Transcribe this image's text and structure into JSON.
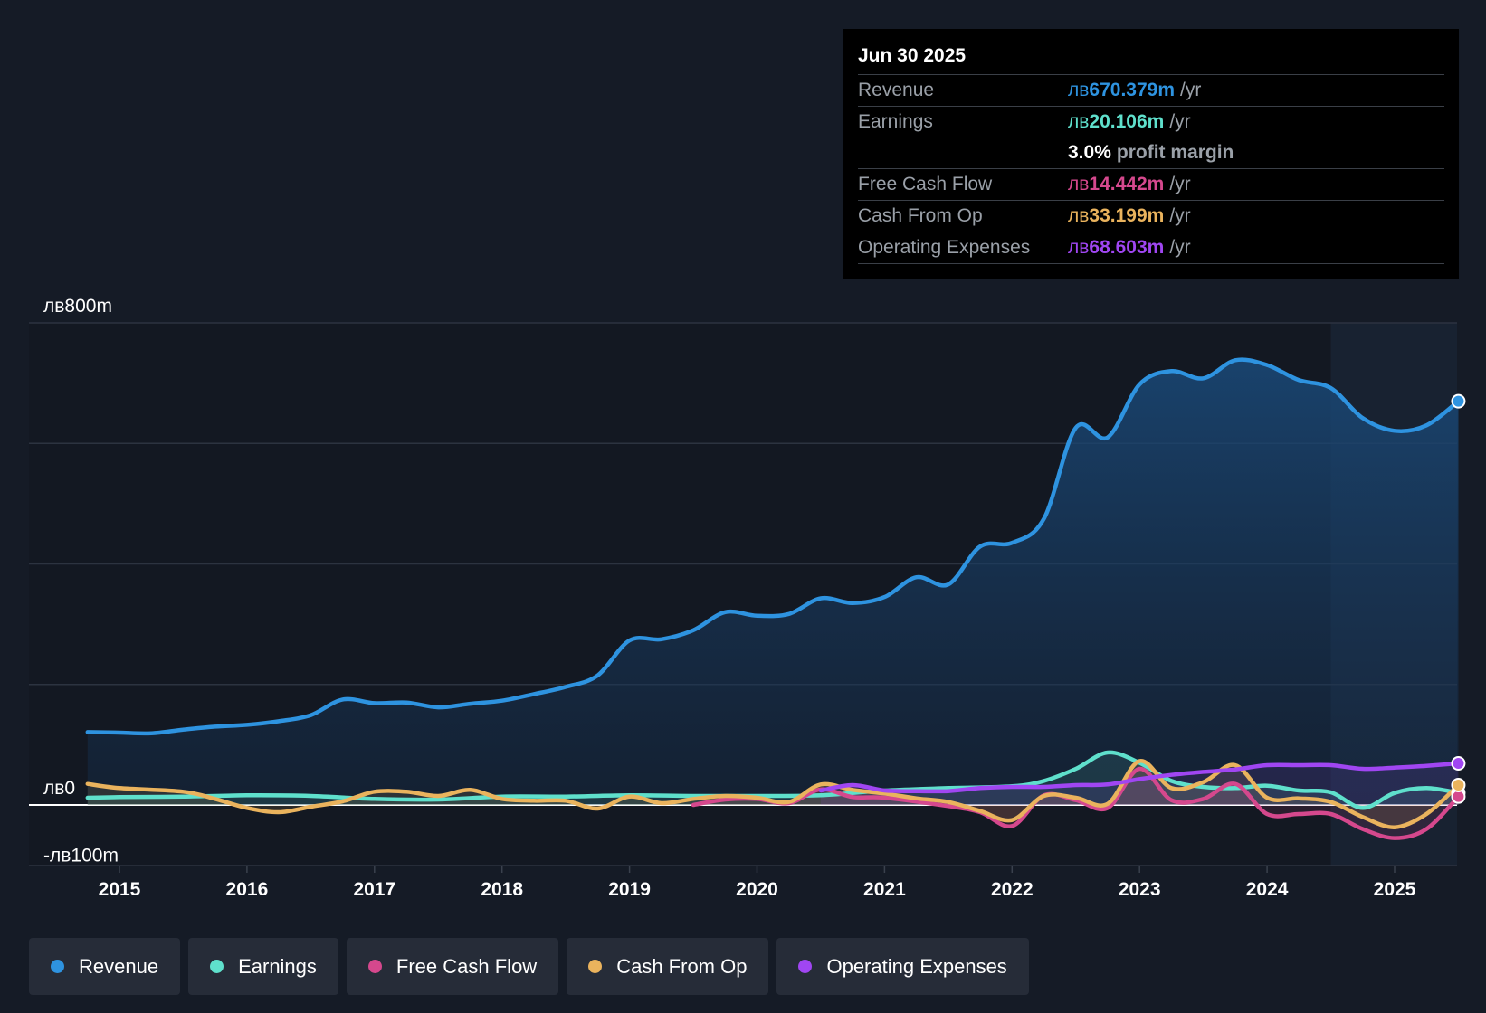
{
  "tooltip": {
    "date": "Jun 30 2025",
    "rows": [
      {
        "label": "Revenue",
        "currency": "лв",
        "value": "670.379m",
        "unit": "/yr",
        "color": "#2e93e0"
      },
      {
        "label": "Earnings",
        "currency": "лв",
        "value": "20.106m",
        "unit": "/yr",
        "color": "#5fe0cc"
      },
      {
        "label": "",
        "value": "3.0%",
        "unit": "profit margin",
        "color": "#ffffff"
      },
      {
        "label": "Free Cash Flow",
        "currency": "лв",
        "value": "14.442m",
        "unit": "/yr",
        "color": "#d5488d"
      },
      {
        "label": "Cash From Op",
        "currency": "лв",
        "value": "33.199m",
        "unit": "/yr",
        "color": "#eab35d"
      },
      {
        "label": "Operating Expenses",
        "currency": "лв",
        "value": "68.603m",
        "unit": "/yr",
        "color": "#a046f2"
      }
    ]
  },
  "legend": [
    {
      "name": "Revenue",
      "color": "#2e93e0"
    },
    {
      "name": "Earnings",
      "color": "#5fe0cc"
    },
    {
      "name": "Free Cash Flow",
      "color": "#d5488d"
    },
    {
      "name": "Cash From Op",
      "color": "#eab35d"
    },
    {
      "name": "Operating Expenses",
      "color": "#a046f2"
    }
  ],
  "chart_data": {
    "type": "line",
    "ylim": [
      -100,
      800
    ],
    "y_tick_labels": [
      {
        "value": 800,
        "label": "лв800m"
      },
      {
        "value": 0,
        "label": "лв0"
      },
      {
        "value": -100,
        "label": "-лв100m"
      }
    ],
    "gridlines": [
      800,
      600,
      400,
      200,
      0
    ],
    "xlim": [
      2014.3,
      2025.5
    ],
    "x_ticks": [
      2015,
      2016,
      2017,
      2018,
      2019,
      2020,
      2021,
      2022,
      2023,
      2024,
      2025
    ],
    "x_tick_labels": [
      "2015",
      "2016",
      "2017",
      "2018",
      "2019",
      "2020",
      "2021",
      "2022",
      "2023",
      "2024",
      "2025"
    ],
    "highlight_start": 2024.5,
    "series": [
      {
        "name": "Revenue",
        "color": "#2e93e0",
        "fill": true,
        "x": [
          2014.75,
          2015.0,
          2015.25,
          2015.5,
          2015.75,
          2016.0,
          2016.25,
          2016.5,
          2016.75,
          2017.0,
          2017.25,
          2017.5,
          2017.75,
          2018.0,
          2018.25,
          2018.5,
          2018.75,
          2019.0,
          2019.25,
          2019.5,
          2019.75,
          2020.0,
          2020.25,
          2020.5,
          2020.75,
          2021.0,
          2021.25,
          2021.5,
          2021.75,
          2022.0,
          2022.25,
          2022.5,
          2022.75,
          2023.0,
          2023.25,
          2023.5,
          2023.75,
          2024.0,
          2024.25,
          2024.5,
          2024.75,
          2025.0,
          2025.25,
          2025.5
        ],
        "y": [
          121,
          120,
          119,
          125,
          130,
          133,
          139,
          149,
          175,
          169,
          170,
          162,
          168,
          173,
          184,
          196,
          215,
          273,
          275,
          290,
          320,
          314,
          317,
          343,
          335,
          345,
          378,
          366,
          429,
          435,
          475,
          626,
          610,
          698,
          720,
          708,
          738,
          730,
          705,
          692,
          642,
          621,
          630,
          670
        ]
      },
      {
        "name": "Earnings",
        "color": "#5fe0cc",
        "x": [
          2014.75,
          2015.0,
          2015.5,
          2016.0,
          2016.5,
          2017.0,
          2017.5,
          2018.0,
          2018.5,
          2019.0,
          2019.5,
          2020.0,
          2020.5,
          2021.0,
          2021.5,
          2022.0,
          2022.25,
          2022.5,
          2022.75,
          2023.0,
          2023.25,
          2023.5,
          2023.75,
          2024.0,
          2024.25,
          2024.5,
          2024.75,
          2025.0,
          2025.25,
          2025.5
        ],
        "y": [
          12,
          13,
          14,
          16,
          15,
          10,
          9,
          14,
          14,
          16,
          15,
          15,
          16,
          24,
          28,
          31,
          40,
          60,
          87,
          70,
          40,
          30,
          28,
          32,
          24,
          21,
          -5,
          20,
          28,
          20
        ]
      },
      {
        "name": "Free Cash Flow",
        "color": "#d5488d",
        "x": [
          2019.5,
          2019.75,
          2020.0,
          2020.25,
          2020.5,
          2020.75,
          2021.0,
          2021.5,
          2021.75,
          2022.0,
          2022.25,
          2022.5,
          2022.75,
          2023.0,
          2023.25,
          2023.5,
          2023.75,
          2024.0,
          2024.25,
          2024.5,
          2024.75,
          2025.0,
          2025.25,
          2025.5
        ],
        "y": [
          0,
          9,
          10,
          3,
          26,
          13,
          12,
          -2,
          -12,
          -35,
          16,
          8,
          -5,
          60,
          8,
          10,
          35,
          -15,
          -15,
          -15,
          -40,
          -55,
          -40,
          14
        ]
      },
      {
        "name": "Cash From Op",
        "color": "#eab35d",
        "x": [
          2014.75,
          2015.0,
          2015.5,
          2015.75,
          2016.0,
          2016.25,
          2016.5,
          2016.75,
          2017.0,
          2017.25,
          2017.5,
          2017.75,
          2018.0,
          2018.25,
          2018.5,
          2018.75,
          2019.0,
          2019.25,
          2019.5,
          2019.75,
          2020.0,
          2020.25,
          2020.5,
          2020.75,
          2021.0,
          2021.25,
          2021.5,
          2021.75,
          2022.0,
          2022.25,
          2022.5,
          2022.75,
          2023.0,
          2023.25,
          2023.5,
          2023.75,
          2024.0,
          2024.25,
          2024.5,
          2024.75,
          2025.0,
          2025.25,
          2025.5
        ],
        "y": [
          35,
          28,
          22,
          10,
          -5,
          -12,
          -3,
          6,
          22,
          22,
          15,
          25,
          10,
          7,
          7,
          -6,
          14,
          3,
          10,
          15,
          12,
          5,
          34,
          25,
          19,
          11,
          5,
          -10,
          -25,
          15,
          12,
          2,
          73,
          28,
          38,
          66,
          12,
          11,
          5,
          -20,
          -37,
          -15,
          33
        ]
      },
      {
        "name": "Operating Expenses",
        "color": "#a046f2",
        "x": [
          2020.5,
          2020.75,
          2021.0,
          2021.25,
          2021.5,
          2021.75,
          2022.0,
          2022.25,
          2022.5,
          2022.75,
          2023.0,
          2023.25,
          2023.5,
          2023.75,
          2024.0,
          2024.25,
          2024.5,
          2024.75,
          2025.0,
          2025.25,
          2025.5
        ],
        "y": [
          24,
          33,
          24,
          23,
          23,
          28,
          30,
          30,
          33,
          34,
          43,
          50,
          55,
          59,
          66,
          66,
          66,
          60,
          62,
          65,
          69
        ]
      }
    ]
  }
}
